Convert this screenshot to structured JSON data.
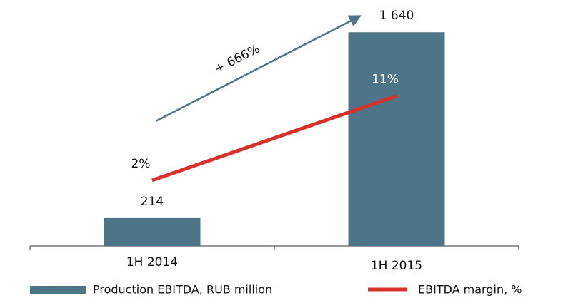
{
  "chart_data": {
    "type": "bar+line",
    "categories": [
      "1H 2014",
      "1H 2015"
    ],
    "series": [
      {
        "name": "Production EBITDA, RUB million",
        "type": "bar",
        "color": "#4e7488",
        "values": [
          214,
          1640
        ],
        "value_labels": [
          "214",
          "1 640"
        ]
      },
      {
        "name": "EBITDA margin, %",
        "type": "line",
        "color": "#d9302a",
        "axis": "y2",
        "values": [
          2,
          11
        ],
        "value_labels": [
          "2%",
          "11%"
        ]
      }
    ],
    "annotations": [
      {
        "text": "+ 666%",
        "color": "#4e7488"
      }
    ],
    "ylim": [
      0,
      1800
    ],
    "y2lim": [
      -5,
      20
    ],
    "grid": false,
    "legend": "bottom"
  }
}
